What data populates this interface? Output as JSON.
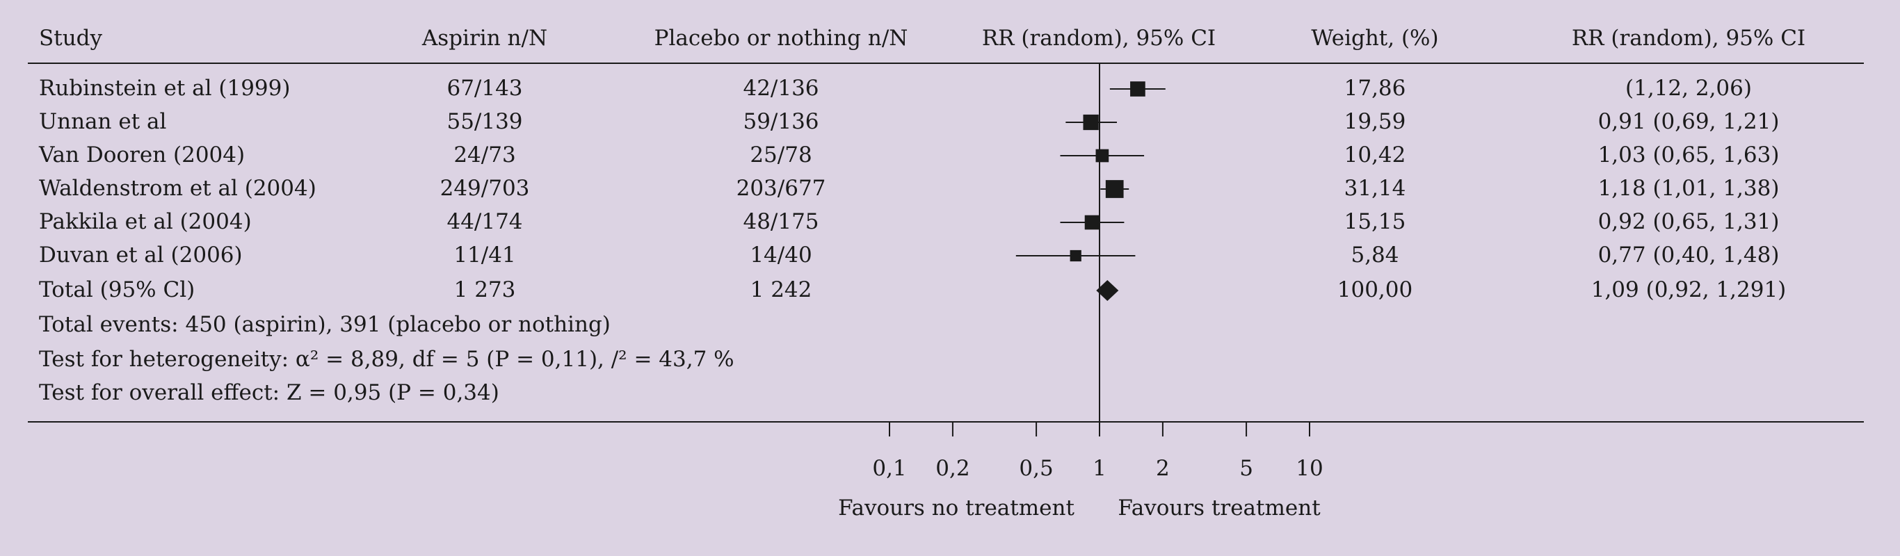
{
  "chart_data": {
    "type": "forest",
    "headers": {
      "study": "Study",
      "aspirin": "Aspirin n/N",
      "placebo": "Placebo or nothing n/N",
      "plot": "RR (random), 95% CI",
      "weight": "Weight, (%)",
      "rr": "RR (random), 95% CI"
    },
    "studies": [
      {
        "name": "Rubinstein et al (1999)",
        "aspirin": "67/143",
        "placebo": "42/136",
        "weight": "17,86",
        "rr_text": "(1,12, 2,06)",
        "rr": 1.52,
        "lo": 1.12,
        "hi": 2.06,
        "w": 17.86
      },
      {
        "name": "Unnan et al",
        "aspirin": "55/139",
        "placebo": "59/136",
        "weight": "19,59",
        "rr_text": "0,91 (0,69, 1,21)",
        "rr": 0.91,
        "lo": 0.69,
        "hi": 1.21,
        "w": 19.59
      },
      {
        "name": "Van Dooren (2004)",
        "aspirin": "24/73",
        "placebo": "25/78",
        "weight": "10,42",
        "rr_text": "1,03 (0,65, 1,63)",
        "rr": 1.03,
        "lo": 0.65,
        "hi": 1.63,
        "w": 10.42
      },
      {
        "name": "Waldenstrom et al (2004)",
        "aspirin": "249/703",
        "placebo": "203/677",
        "weight": "31,14",
        "rr_text": "1,18 (1,01, 1,38)",
        "rr": 1.18,
        "lo": 1.01,
        "hi": 1.38,
        "w": 31.14
      },
      {
        "name": "Pakkila et al (2004)",
        "aspirin": "44/174",
        "placebo": "48/175",
        "weight": "15,15",
        "rr_text": "0,92 (0,65, 1,31)",
        "rr": 0.92,
        "lo": 0.65,
        "hi": 1.31,
        "w": 15.15
      },
      {
        "name": "Duvan et al (2006)",
        "aspirin": "11/41",
        "placebo": "14/40",
        "weight": "5,84",
        "rr_text": "0,77 (0,40, 1,48)",
        "rr": 0.77,
        "lo": 0.4,
        "hi": 1.48,
        "w": 5.84
      }
    ],
    "total": {
      "name": "Total (95% Cl)",
      "aspirin": "1 273",
      "placebo": "1 242",
      "weight": "100,00",
      "rr_text": "1,09 (0,92, 1,291)",
      "rr": 1.09,
      "lo": 0.92,
      "hi": 1.29
    },
    "footnotes": [
      "Total events: 450 (aspirin), 391 (placebo or nothing)",
      "Test for heterogeneity: α² =  8,89, df = 5 (P = 0,11), /² = 43,7 %",
      "Test for overall effect: Z = 0,95 (P = 0,34)"
    ],
    "axis": {
      "scale": "log",
      "ticks": [
        0.1,
        0.2,
        0.5,
        1,
        2,
        5,
        10
      ],
      "tick_labels": [
        "0,1",
        "0,2",
        "0,5",
        "1",
        "2",
        "5",
        "10"
      ],
      "xlim": [
        0.1,
        10
      ],
      "favours_left": "Favours no treatment",
      "favours_right": "Favours treatment"
    },
    "colors": {
      "background": "#dcd3e3",
      "ink": "#1a1a1a"
    }
  }
}
